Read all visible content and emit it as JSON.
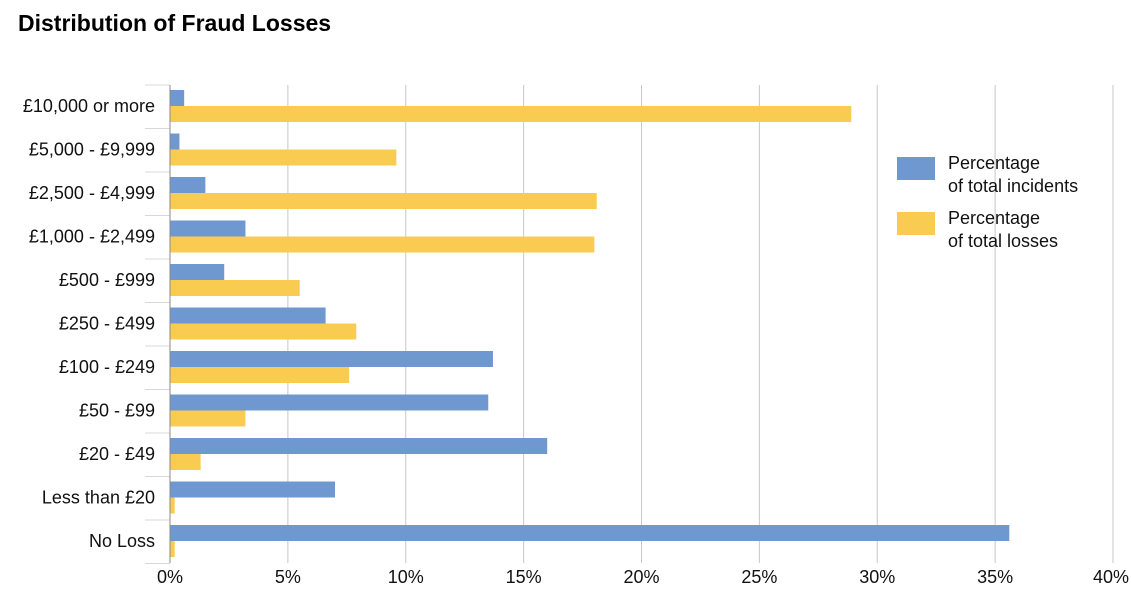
{
  "chart_data": {
    "type": "bar",
    "orientation": "horizontal",
    "title": "Distribution of Fraud Losses",
    "xlabel": "",
    "ylabel": "",
    "xlim": [
      0,
      40
    ],
    "x_ticks": [
      "0%",
      "5%",
      "10%",
      "15%",
      "20%",
      "25%",
      "30%",
      "35%",
      "40%"
    ],
    "categories": [
      "£10,000 or more",
      "£5,000 - £9,999",
      "£2,500 - £4,999",
      "£1,000 - £2,499",
      "£500 - £999",
      "£250 - £499",
      "£100 - £249",
      "£50 - £99",
      "£20 - £49",
      "Less than £20",
      "No Loss"
    ],
    "series": [
      {
        "name": "Percentage of total incidents",
        "color": "#7098D0",
        "values": [
          0.6,
          0.4,
          1.5,
          3.2,
          2.3,
          6.6,
          13.7,
          13.5,
          16.0,
          7.0,
          35.6
        ]
      },
      {
        "name": "Percentage of total losses",
        "color": "#F9CB50",
        "values": [
          28.9,
          9.6,
          18.1,
          18.0,
          5.5,
          7.9,
          7.6,
          3.2,
          1.3,
          0.2,
          0.2
        ]
      }
    ],
    "legend": {
      "position": "top-right",
      "entries": [
        [
          "Percentage",
          "of total incidents"
        ],
        [
          "Percentage",
          "of total losses"
        ]
      ]
    },
    "grid": true
  }
}
